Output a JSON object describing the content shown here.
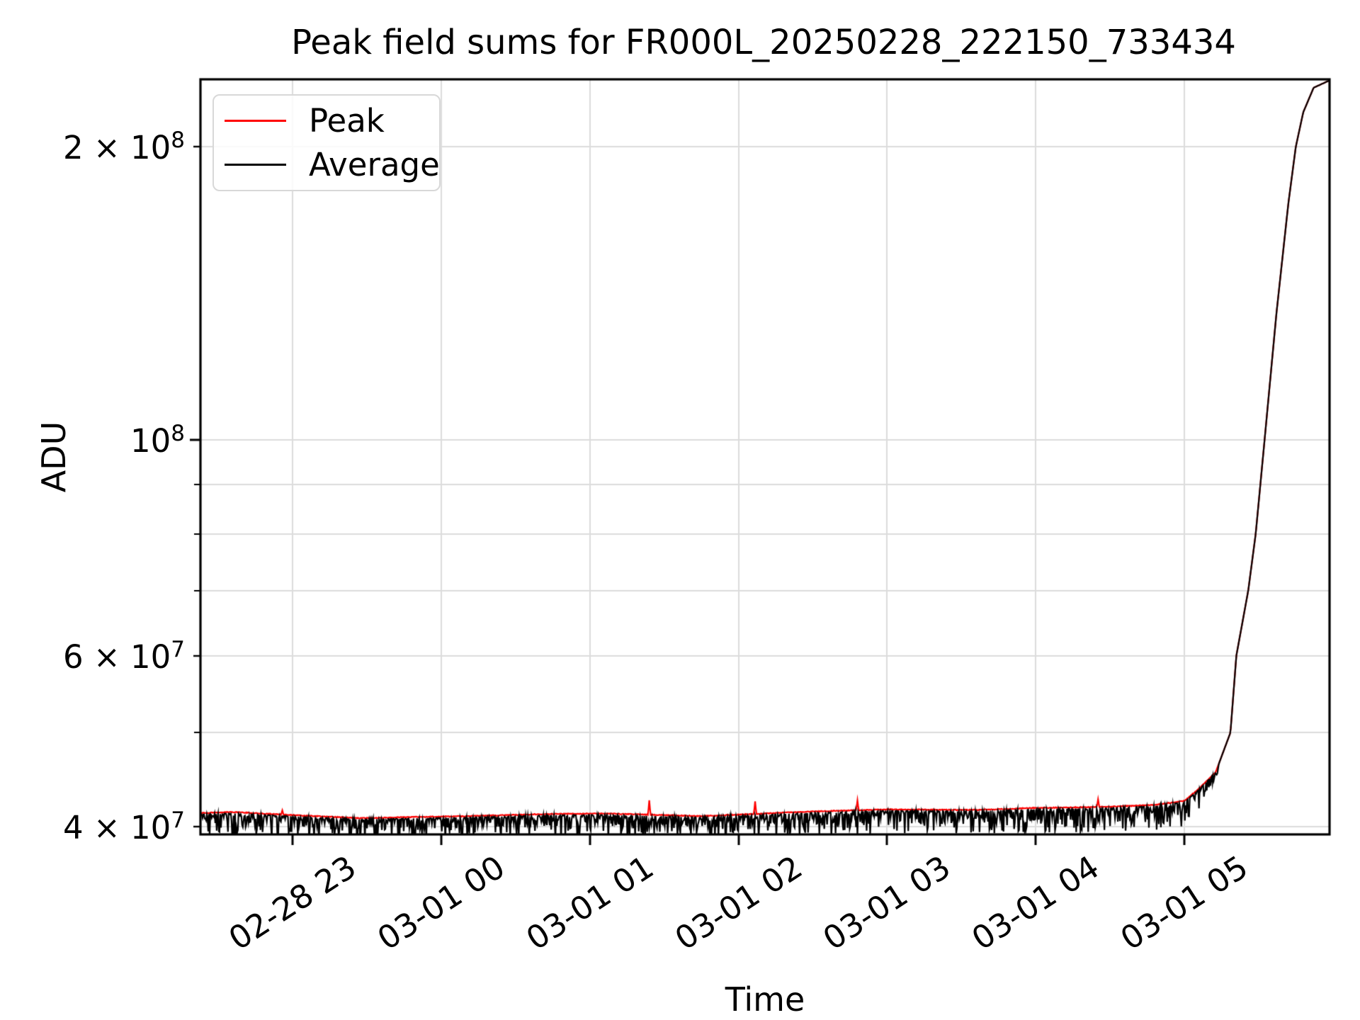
{
  "figure": {
    "title": "Peak field sums for FR000L_20250228_222150_733434",
    "xlabel": "Time",
    "ylabel": "ADU"
  },
  "legend": {
    "items": [
      {
        "label": "Peak",
        "color": "#ff0000"
      },
      {
        "label": "Average",
        "color": "#000000"
      }
    ]
  },
  "chart_data": {
    "type": "line",
    "title": "Peak field sums for FR000L_20250228_222150_733434",
    "xlabel": "Time",
    "ylabel": "ADU",
    "yscale": "log",
    "grid": true,
    "legend_position": "upper left",
    "x_unit_note": "decimal hours since 2025-02-28 00:00",
    "xlim": [
      22.379,
      29.977
    ],
    "ylim": [
      39300000,
      234600000
    ],
    "x_ticks": [
      {
        "value": 23,
        "label": "02-28 23"
      },
      {
        "value": 24,
        "label": "03-01 00"
      },
      {
        "value": 25,
        "label": "03-01 01"
      },
      {
        "value": 26,
        "label": "03-01 02"
      },
      {
        "value": 27,
        "label": "03-01 03"
      },
      {
        "value": 28,
        "label": "03-01 04"
      },
      {
        "value": 29,
        "label": "03-01 05"
      }
    ],
    "y_ticks_labeled": [
      {
        "value": 200000000,
        "base": "2 × 10",
        "exp": "8",
        "major": false
      },
      {
        "value": 100000000,
        "base": "10",
        "exp": "8",
        "major": true
      },
      {
        "value": 60000000,
        "base": "6 × 10",
        "exp": "7",
        "major": false
      },
      {
        "value": 40000000,
        "base": "4 × 10",
        "exp": "7",
        "major": false
      }
    ],
    "y_minor_ticks": [
      50000000,
      70000000,
      80000000,
      90000000
    ],
    "series": [
      {
        "name": "Peak",
        "color": "#ff0000",
        "description": "upper envelope of field sums; smooth top edge with sharp isolated spikes",
        "noise_up_pct": 0.2,
        "spikes": [
          [
            22.93,
            41600000
          ],
          [
            25.4,
            42600000
          ],
          [
            26.11,
            42500000
          ],
          [
            26.8,
            42600000
          ],
          [
            28.42,
            42700000
          ]
        ]
      },
      {
        "name": "Average",
        "color": "#000000",
        "description": "same trend as Peak with dense downward noise dips up to ~5%",
        "noise_down_pct": 5.5
      }
    ],
    "trend_anchors": [
      [
        22.379,
        41300000
      ],
      [
        22.6,
        41400000
      ],
      [
        23.0,
        41100000
      ],
      [
        23.45,
        40800000
      ],
      [
        23.8,
        40900000
      ],
      [
        24.2,
        41000000
      ],
      [
        24.7,
        41200000
      ],
      [
        25.1,
        41250000
      ],
      [
        25.5,
        41100000
      ],
      [
        25.75,
        41000000
      ],
      [
        26.1,
        41200000
      ],
      [
        26.5,
        41450000
      ],
      [
        27.0,
        41650000
      ],
      [
        27.6,
        41600000
      ],
      [
        28.0,
        41800000
      ],
      [
        28.46,
        41900000
      ],
      [
        28.8,
        42100000
      ],
      [
        29.0,
        42500000
      ],
      [
        29.1,
        43800000
      ],
      [
        29.21,
        45500000
      ],
      [
        29.31,
        50000000
      ],
      [
        29.35,
        60000000
      ],
      [
        29.43,
        70000000
      ],
      [
        29.48,
        80000000
      ],
      [
        29.54,
        100000000
      ],
      [
        29.62,
        135000000
      ],
      [
        29.7,
        175000000
      ],
      [
        29.75,
        200000000
      ],
      [
        29.8,
        217000000
      ],
      [
        29.87,
        230000000
      ],
      [
        29.977,
        234000000
      ]
    ]
  }
}
